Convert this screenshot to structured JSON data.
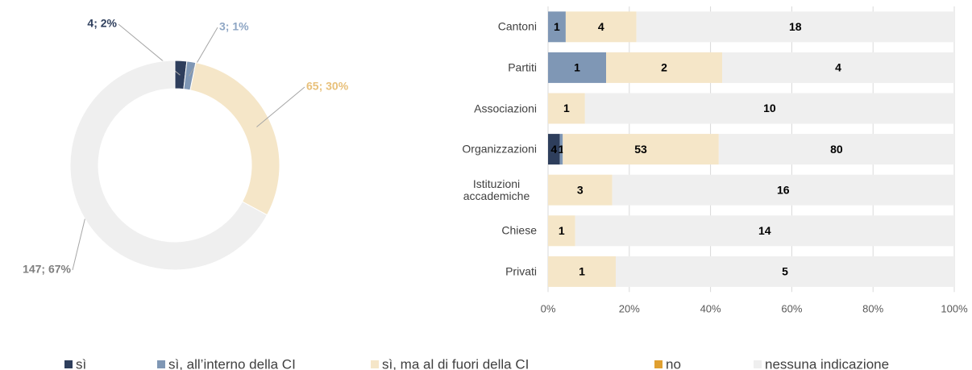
{
  "chart_data": [
    {
      "type": "pie",
      "values": [
        4,
        3,
        65,
        147
      ],
      "value_labels": [
        "4; 2%",
        "3; 1%",
        "65; 30%",
        "147; 67%"
      ],
      "colors": [
        "#2e3e5c",
        "#7f97b5",
        "#f5e6c8",
        "#efefef"
      ],
      "label_colors": [
        "#2e3e5c",
        "#8ea6c4",
        "#e8c07a",
        "#7f7f7f"
      ],
      "donut": true
    },
    {
      "type": "bar",
      "orientation": "horizontal",
      "stacking": "percent",
      "categories": [
        "Cantoni",
        "Partiti",
        "Associazioni",
        "Organizzazioni",
        "Istituzioni accademiche",
        "Chiese",
        "Privati"
      ],
      "series": [
        {
          "name": "sì",
          "color": "#2e3e5c",
          "values": [
            0,
            0,
            0,
            4,
            0,
            0,
            0
          ]
        },
        {
          "name": "sì, all’interno della CI",
          "color": "#7f97b5",
          "values": [
            1,
            1,
            0,
            1,
            0,
            0,
            0
          ]
        },
        {
          "name": "sì, ma al di fuori della CI",
          "color": "#f5e6c8",
          "values": [
            4,
            2,
            1,
            53,
            3,
            1,
            1
          ]
        },
        {
          "name": "no",
          "color": "#e0a030",
          "values": [
            0,
            0,
            0,
            0,
            0,
            0,
            0
          ]
        },
        {
          "name": "nessuna indicazione",
          "color": "#efefef",
          "values": [
            18,
            4,
            10,
            80,
            16,
            14,
            5
          ]
        }
      ],
      "xlim": [
        0,
        100
      ],
      "xticks": [
        {
          "value": 0,
          "label": "0%"
        },
        {
          "value": 20,
          "label": "20%"
        },
        {
          "value": 40,
          "label": "40%"
        },
        {
          "value": 60,
          "label": "60%"
        },
        {
          "value": 80,
          "label": "80%"
        },
        {
          "value": 100,
          "label": "100%"
        }
      ],
      "grid": true,
      "legend": "bottom"
    }
  ]
}
